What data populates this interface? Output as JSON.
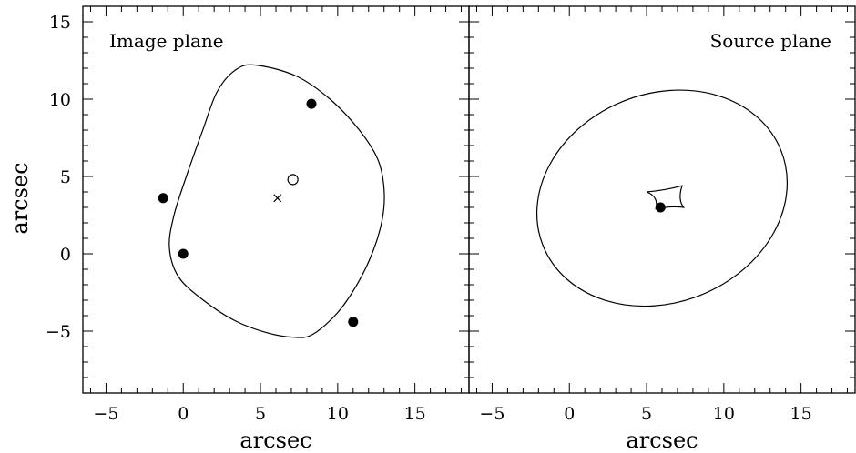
{
  "chart_data": [
    {
      "type": "scatter",
      "panel": "left",
      "title": "Image plane",
      "xlabel": "arcsec",
      "ylabel": "arcsec",
      "xlim": [
        -6.5,
        18.5
      ],
      "ylim": [
        -9,
        16
      ],
      "x_ticks": [
        -5,
        0,
        5,
        10,
        15
      ],
      "y_ticks": [
        -5,
        0,
        5,
        10,
        15
      ],
      "critical_curve": [
        [
          4.7,
          12.2
        ],
        [
          7.3,
          11.5
        ],
        [
          9.5,
          10.0
        ],
        [
          11.4,
          8.0
        ],
        [
          12.6,
          6.1
        ],
        [
          13.0,
          4.2
        ],
        [
          12.9,
          2.3
        ],
        [
          12.3,
          0.2
        ],
        [
          11.3,
          -1.9
        ],
        [
          10.0,
          -3.8
        ],
        [
          8.4,
          -5.2
        ],
        [
          7.2,
          -5.4
        ],
        [
          5.4,
          -5.1
        ],
        [
          3.3,
          -4.3
        ],
        [
          1.3,
          -3.0
        ],
        [
          -0.3,
          -1.5
        ],
        [
          -0.9,
          0.4
        ],
        [
          -0.6,
          2.5
        ],
        [
          0.2,
          5.0
        ],
        [
          1.3,
          8.1
        ],
        [
          2.2,
          10.5
        ],
        [
          3.4,
          11.9
        ]
      ],
      "images": [
        [
          8.3,
          9.7
        ],
        [
          -1.3,
          3.6
        ],
        [
          0.0,
          0.0
        ],
        [
          11.0,
          -4.4
        ]
      ],
      "open_circle": [
        7.1,
        4.8
      ],
      "cross": [
        6.1,
        3.6
      ]
    },
    {
      "type": "scatter",
      "panel": "right",
      "title": "Source plane",
      "xlabel": "arcsec",
      "ylabel": "",
      "xlim": [
        -6.5,
        18.5
      ],
      "ylim": [
        -9,
        16
      ],
      "x_ticks": [
        -5,
        0,
        5,
        10,
        15
      ],
      "caustic_ellipse": {
        "cx": 6.0,
        "cy": 3.6,
        "rx": 8.3,
        "ry": 6.75,
        "angle_deg": 22
      },
      "astroid_caustic": [
        [
          5.0,
          4.0
        ],
        [
          6.2,
          4.1
        ],
        [
          7.3,
          4.4
        ],
        [
          7.0,
          3.5
        ],
        [
          7.4,
          3.0
        ],
        [
          6.5,
          3.1
        ],
        [
          5.6,
          2.9
        ],
        [
          5.8,
          3.7
        ]
      ],
      "source": [
        5.9,
        3.0
      ]
    }
  ]
}
